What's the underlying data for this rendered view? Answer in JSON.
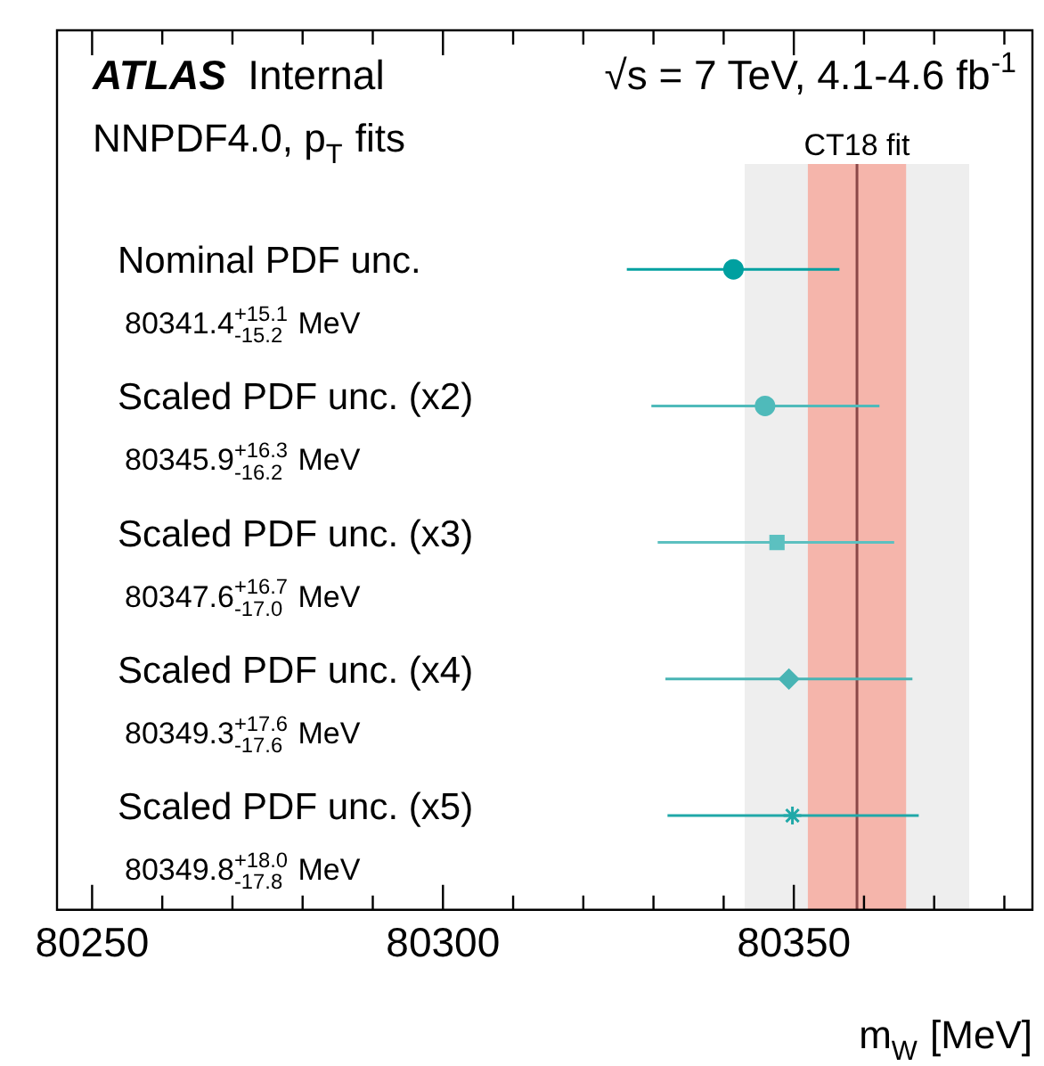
{
  "chart_data": {
    "type": "scatter",
    "title": "ATLAS Internal",
    "subtitle": "NNPDF4.0, p$_{T}$ fits",
    "annotations": [
      "√s = 7 TeV, 4.1-4.6 fb$^{-1}$",
      "80341.4$^{+15.1}$$_{-15.2}$ MeV",
      "80345.9$^{+16.3}$$_{-16.2}$ MeV",
      "80347.6$^{+16.7}$$_{-17.0}$ MeV",
      "80349.3$^{+17.6}$$_{-17.6}$ MeV",
      "80349.8$^{+18.0}$$_{-17.8}$ MeV"
    ],
    "xlabel": "m$_{W}$ [MeV]",
    "categories": [
      "Nominal PDF unc.",
      "Scaled PDF unc. (x2)",
      "Scaled PDF unc. (x3)",
      "Scaled PDF unc. (x4)",
      "Scaled PDF unc. (x5)"
    ],
    "orientation": "horizontal",
    "series": [
      {
        "color": "#00a0a0",
        "marker": "circle",
        "values": [
          80341.4,
          null,
          null,
          null,
          null
        ],
        "errors": [
          [
            80326.2,
            80356.5
          ],
          null,
          null,
          null,
          null
        ]
      },
      {
        "color": "#4fbaba",
        "marker": "circle",
        "values": [
          null,
          80345.9,
          null,
          null,
          null
        ],
        "errors": [
          null,
          [
            80329.7,
            80362.2
          ],
          null,
          null,
          null
        ]
      },
      {
        "color": "#5cc0c0",
        "marker": "square",
        "values": [
          null,
          null,
          80347.6,
          null,
          null
        ],
        "errors": [
          null,
          null,
          [
            80330.6,
            80364.3
          ],
          null,
          null
        ]
      },
      {
        "color": "#48b4b4",
        "marker": "diamond",
        "values": [
          null,
          null,
          null,
          80349.3,
          null
        ],
        "errors": [
          null,
          null,
          null,
          [
            80331.7,
            80366.9
          ],
          null
        ]
      },
      {
        "color": "#20a8a8",
        "marker": "cross",
        "values": [
          null,
          null,
          null,
          null,
          80349.8
        ],
        "errors": [
          null,
          null,
          null,
          null,
          [
            80332.0,
            80367.8
          ]
        ]
      }
    ],
    "bands": [
      {
        "axis": "x",
        "from": 80343,
        "to": 80375,
        "color": "#eeeeee"
      },
      {
        "axis": "x",
        "from": 80352,
        "to": 80366,
        "color": "#f5b5ab"
      }
    ],
    "ref_lines": [
      {
        "axis": "x",
        "value": 80359,
        "label": "CT18 fit",
        "color": "#8a4848"
      }
    ],
    "xlim": [
      80245,
      80384
    ],
    "xticks": [
      80250,
      {
        "value": 80260,
        "label": null
      },
      {
        "value": 80270,
        "label": null
      },
      {
        "value": 80280,
        "label": null
      },
      {
        "value": 80290,
        "label": null
      },
      80300,
      {
        "value": 80310,
        "label": null
      },
      {
        "value": 80320,
        "label": null
      },
      {
        "value": 80330,
        "label": null
      },
      {
        "value": 80340,
        "label": null
      },
      80350,
      {
        "value": 80360,
        "label": null
      },
      {
        "value": 80370,
        "label": null
      },
      {
        "value": 80380,
        "label": null
      }
    ],
    "grid": false,
    "legend": false
  }
}
